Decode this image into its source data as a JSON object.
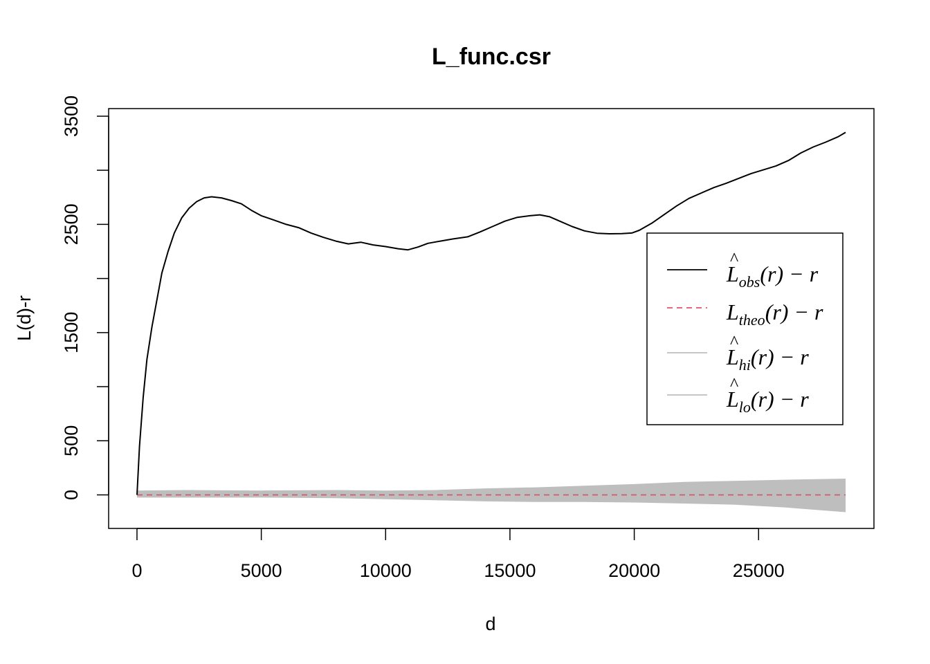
{
  "chart_data": {
    "type": "line",
    "title": "L_func.csr",
    "xlabel": "d",
    "ylabel": "L(d)-r",
    "xlim": [
      -1140,
      29640
    ],
    "ylim": [
      -310,
      3570
    ],
    "x_ticks": [
      0,
      5000,
      10000,
      15000,
      20000,
      25000
    ],
    "x_tick_labels": [
      "0",
      "5000",
      "10000",
      "15000",
      "20000",
      "25000"
    ],
    "y_ticks": [
      0,
      500,
      1000,
      1500,
      2000,
      2500,
      3000,
      3500
    ],
    "y_tick_labels": [
      "0",
      "500",
      "",
      "1500",
      "",
      "2500",
      "",
      "3500"
    ],
    "grid": false,
    "legend_position": "right",
    "series": [
      {
        "key": "obs",
        "color": "#000000",
        "dash": "solid",
        "points": [
          [
            0,
            0
          ],
          [
            100,
            450
          ],
          [
            250,
            900
          ],
          [
            400,
            1250
          ],
          [
            600,
            1550
          ],
          [
            800,
            1800
          ],
          [
            1000,
            2050
          ],
          [
            1250,
            2250
          ],
          [
            1500,
            2420
          ],
          [
            1800,
            2560
          ],
          [
            2100,
            2650
          ],
          [
            2400,
            2710
          ],
          [
            2700,
            2745
          ],
          [
            3000,
            2755
          ],
          [
            3400,
            2745
          ],
          [
            3800,
            2720
          ],
          [
            4200,
            2690
          ],
          [
            4600,
            2630
          ],
          [
            5000,
            2580
          ],
          [
            5500,
            2540
          ],
          [
            6000,
            2500
          ],
          [
            6500,
            2470
          ],
          [
            7000,
            2420
          ],
          [
            7500,
            2380
          ],
          [
            8000,
            2345
          ],
          [
            8500,
            2320
          ],
          [
            9000,
            2335
          ],
          [
            9500,
            2310
          ],
          [
            10000,
            2295
          ],
          [
            10500,
            2275
          ],
          [
            10900,
            2265
          ],
          [
            11300,
            2290
          ],
          [
            11700,
            2325
          ],
          [
            12200,
            2345
          ],
          [
            12700,
            2365
          ],
          [
            13300,
            2385
          ],
          [
            13800,
            2430
          ],
          [
            14300,
            2480
          ],
          [
            14800,
            2530
          ],
          [
            15300,
            2565
          ],
          [
            15800,
            2580
          ],
          [
            16200,
            2588
          ],
          [
            16600,
            2570
          ],
          [
            17000,
            2530
          ],
          [
            17500,
            2480
          ],
          [
            18000,
            2440
          ],
          [
            18500,
            2418
          ],
          [
            19000,
            2413
          ],
          [
            19500,
            2415
          ],
          [
            19900,
            2420
          ],
          [
            20200,
            2445
          ],
          [
            20700,
            2510
          ],
          [
            21200,
            2590
          ],
          [
            21700,
            2670
          ],
          [
            22200,
            2740
          ],
          [
            22700,
            2790
          ],
          [
            23200,
            2840
          ],
          [
            23700,
            2880
          ],
          [
            24200,
            2925
          ],
          [
            24700,
            2970
          ],
          [
            25200,
            3005
          ],
          [
            25700,
            3040
          ],
          [
            26200,
            3090
          ],
          [
            26700,
            3160
          ],
          [
            27200,
            3215
          ],
          [
            27700,
            3260
          ],
          [
            28200,
            3310
          ],
          [
            28500,
            3350
          ]
        ]
      },
      {
        "key": "theo",
        "color": "#df536b",
        "dash": "dashed",
        "points": [
          [
            0,
            0
          ],
          [
            28500,
            0
          ]
        ]
      },
      {
        "key": "hi",
        "color": "#bebebe",
        "dash": "solid",
        "points": [
          [
            0,
            40
          ],
          [
            2000,
            45
          ],
          [
            5000,
            40
          ],
          [
            8000,
            45
          ],
          [
            10000,
            40
          ],
          [
            12000,
            45
          ],
          [
            14000,
            60
          ],
          [
            16000,
            70
          ],
          [
            18000,
            85
          ],
          [
            20000,
            100
          ],
          [
            22000,
            120
          ],
          [
            24000,
            130
          ],
          [
            26000,
            140
          ],
          [
            28500,
            150
          ]
        ]
      },
      {
        "key": "lo",
        "color": "#bebebe",
        "dash": "solid",
        "points": [
          [
            0,
            -25
          ],
          [
            2000,
            -25
          ],
          [
            5000,
            -25
          ],
          [
            8000,
            -30
          ],
          [
            10000,
            -40
          ],
          [
            12000,
            -50
          ],
          [
            14000,
            -60
          ],
          [
            16000,
            -65
          ],
          [
            18000,
            -65
          ],
          [
            20000,
            -70
          ],
          [
            22000,
            -80
          ],
          [
            24000,
            -90
          ],
          [
            26000,
            -115
          ],
          [
            28500,
            -160
          ]
        ]
      }
    ],
    "envelope": {
      "between": [
        "hi",
        "lo"
      ],
      "fill": "#bebebe"
    }
  },
  "legend": {
    "items": [
      {
        "sym": "L",
        "hat": true,
        "sub": "obs",
        "suffix": "(r) − r",
        "color": "#000000",
        "dash": "solid"
      },
      {
        "sym": "L",
        "hat": false,
        "sub": "theo",
        "suffix": "(r) − r",
        "color": "#df536b",
        "dash": "dashed"
      },
      {
        "sym": "L",
        "hat": true,
        "sub": "hi",
        "suffix": "(r) − r",
        "color": "#bebebe",
        "dash": "solid"
      },
      {
        "sym": "L",
        "hat": true,
        "sub": "lo",
        "suffix": "(r) − r",
        "color": "#bebebe",
        "dash": "solid"
      }
    ]
  }
}
